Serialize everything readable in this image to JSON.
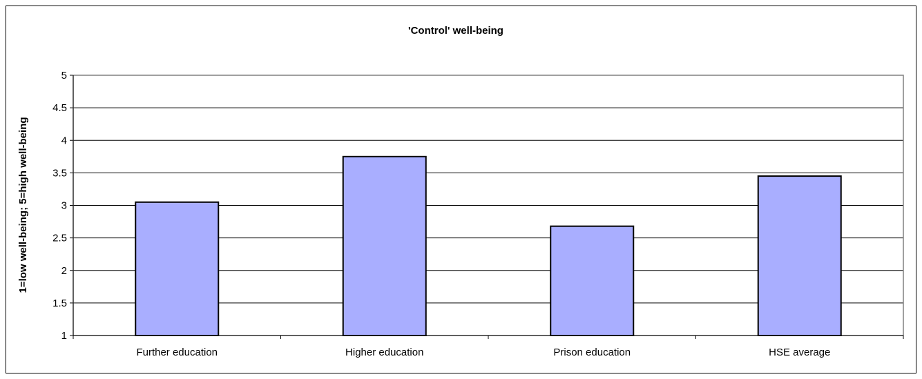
{
  "chart_data": {
    "type": "bar",
    "title": "'Control' well-being",
    "xlabel": "",
    "ylabel": "1=low well-being; 5=high well-being",
    "categories": [
      "Further education",
      "Higher education",
      "Prison education",
      "HSE average"
    ],
    "values": [
      3.05,
      3.75,
      2.68,
      3.45
    ],
    "ylim": [
      1,
      5
    ],
    "yticks": [
      "1",
      "1.5",
      "2",
      "2.5",
      "3",
      "3.5",
      "4",
      "4.5",
      "5"
    ],
    "grid": true,
    "legend": "none",
    "colors": {
      "bar_fill": "#A9AEFF",
      "bar_stroke": "#000000",
      "plot_background": "#FFFFFF",
      "plot_border": "#808080",
      "gridline": "#000000"
    }
  }
}
